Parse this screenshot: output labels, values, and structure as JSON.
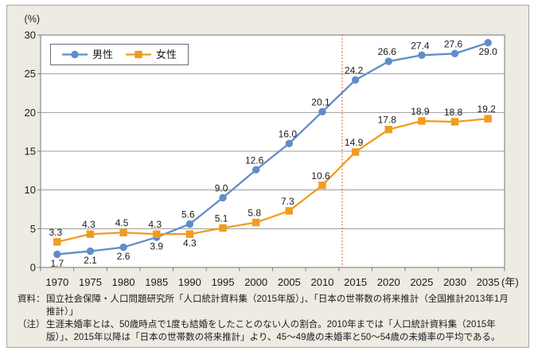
{
  "figure": {
    "panel_background": "#EDEBE2",
    "panel_border_color": "#A8A8A8",
    "plot_background": "#FFFFFF",
    "gridline_color": "#9B9B9B",
    "plot_border_color": "#8A8A8A"
  },
  "chart_data": {
    "type": "line",
    "title": "",
    "unit_y": "(%)",
    "unit_x": "(年)",
    "categories": [
      1970,
      1975,
      1980,
      1985,
      1990,
      1995,
      2000,
      2005,
      2010,
      2015,
      2020,
      2025,
      2030,
      2035
    ],
    "ylim": [
      0,
      30
    ],
    "ytick_step": 5,
    "grid": true,
    "legend_position": "top-left",
    "series": [
      {
        "name": "男性",
        "color": "#5F8DC9",
        "marker": "circle",
        "values": [
          1.7,
          2.1,
          2.6,
          3.9,
          5.6,
          9.0,
          12.6,
          16.0,
          20.1,
          24.2,
          26.6,
          27.4,
          27.6,
          29.0
        ],
        "label_positions": [
          "below",
          "below",
          "below",
          "below",
          "above",
          "above",
          "above",
          "above",
          "above",
          "above",
          "above",
          "above",
          "above",
          "below"
        ]
      },
      {
        "name": "女性",
        "color": "#F09C20",
        "marker": "square",
        "values": [
          3.3,
          4.3,
          4.5,
          4.3,
          4.3,
          5.1,
          5.8,
          7.3,
          10.6,
          14.9,
          17.8,
          18.9,
          18.8,
          19.2
        ],
        "label_positions": [
          "above",
          "above",
          "above",
          "above",
          "below",
          "above",
          "above",
          "above",
          "above",
          "above",
          "above",
          "above",
          "above",
          "above"
        ]
      }
    ],
    "divider_line": {
      "year_position": 2013,
      "color": "#E2571E",
      "style": "dotted"
    }
  },
  "footer": {
    "source_label": "資料：",
    "source_text": "国立社会保障・人口問題研究所「人口統計資料集（2015年版）」、「日本の世帯数の将来推計（全国推計2013年1月推計）」",
    "note_label": "（注）",
    "note_text": "生涯未婚率とは、50歳時点で1度も結婚をしたことのない人の割合。2010年までは「人口統計資料集（2015年版）」、2015年以降は「日本の世帯数の将来推計」より、45～49歳の未婚率と50～54歳の未婚率の平均である。"
  }
}
